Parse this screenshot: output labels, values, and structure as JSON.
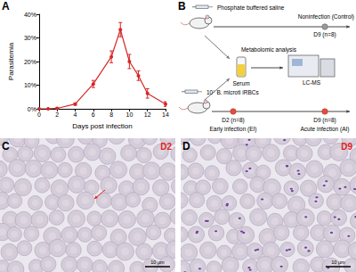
{
  "chart_data": {
    "type": "line",
    "x": [
      0,
      1,
      2,
      4,
      6,
      8,
      9,
      10,
      11,
      12,
      14
    ],
    "values": [
      0,
      0,
      0.2,
      2,
      10.5,
      22,
      33.5,
      20,
      14,
      6.5,
      2
    ],
    "errors": [
      0,
      0,
      0.1,
      0.5,
      1.5,
      2.5,
      3,
      3,
      2,
      2,
      1
    ],
    "color": "#d62728",
    "marker": "circle",
    "xlabel": "Days post infection",
    "ylabel": "Parasitemia",
    "xlim": [
      0,
      14
    ],
    "xticks": [
      0,
      2,
      4,
      6,
      8,
      10,
      12,
      14
    ],
    "ylim": [
      0,
      40
    ],
    "yticks": [
      {
        "value": 0,
        "label": "0%"
      },
      {
        "value": 10,
        "label": "10%"
      },
      {
        "value": 20,
        "label": "20%"
      },
      {
        "value": 30,
        "label": "30%"
      },
      {
        "value": 40,
        "label": "40%"
      }
    ],
    "grid": false
  },
  "panel_labels": [
    "A",
    "B",
    "C",
    "D"
  ],
  "diagram": {
    "control": {
      "injection": "Phosphate buffered saline",
      "group": "Noninfection (Control)",
      "day": "D9 (n=8)"
    },
    "sample": "Serum",
    "analysis": "Metabolomic analysis",
    "instrument": "LC-MS",
    "infection": {
      "injection": "10⁷ B. microti iRBCs",
      "early": {
        "day": "D2 (n=8)",
        "group": "Early infection (EI)"
      },
      "acute": {
        "day": "D9 (n=8)",
        "group": "Acute infection (AI)"
      }
    }
  },
  "micrographs": [
    {
      "label": "D2",
      "scale_bar": "10 μm"
    },
    {
      "label": "D9",
      "scale_bar": "10 μm"
    }
  ]
}
